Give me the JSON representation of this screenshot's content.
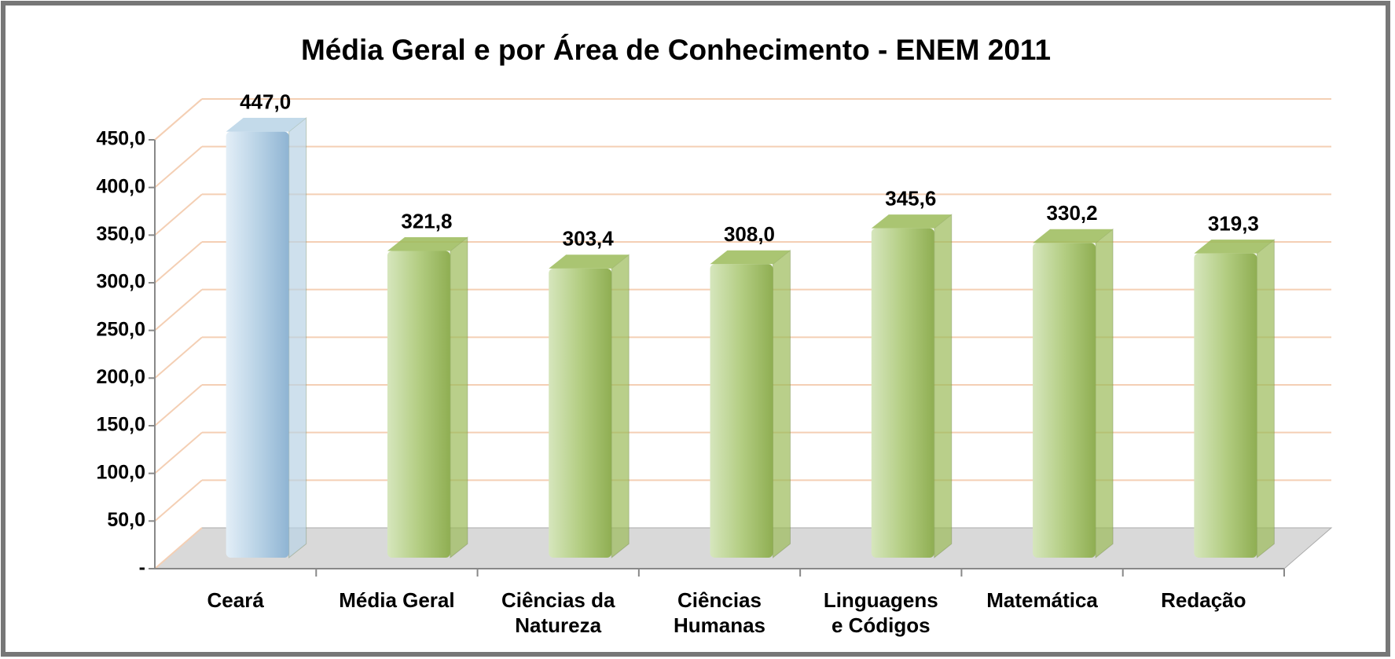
{
  "chart_data": {
    "type": "bar",
    "title": "Média Geral e por Área de Conhecimento - ENEM 2011",
    "categories": [
      "Ceará",
      "Média Geral",
      "Ciências da Natureza",
      "Ciências Humanas",
      "Linguagens e Códigos",
      "Matemática",
      "Redação"
    ],
    "values": [
      447.0,
      321.8,
      303.4,
      308.0,
      345.6,
      330.2,
      319.3
    ],
    "value_labels": [
      "447,0",
      "321,8",
      "303,4",
      "308,0",
      "345,6",
      "330,2",
      "319,3"
    ],
    "colors": [
      "#b9d3e6",
      "#9bbb59",
      "#9bbb59",
      "#9bbb59",
      "#9bbb59",
      "#9bbb59",
      "#9bbb59"
    ],
    "ylim": [
      0,
      450
    ],
    "yticks": [
      {
        "value": 0,
        "label": "-"
      },
      {
        "value": 50,
        "label": "50,0"
      },
      {
        "value": 100,
        "label": "100,0"
      },
      {
        "value": 150,
        "label": "150,0"
      },
      {
        "value": 200,
        "label": "200,0"
      },
      {
        "value": 250,
        "label": "250,0"
      },
      {
        "value": 300,
        "label": "300,0"
      },
      {
        "value": 350,
        "label": "350,0"
      },
      {
        "value": 400,
        "label": "400,0"
      },
      {
        "value": 450,
        "label": "450,0"
      }
    ],
    "grid": true
  }
}
